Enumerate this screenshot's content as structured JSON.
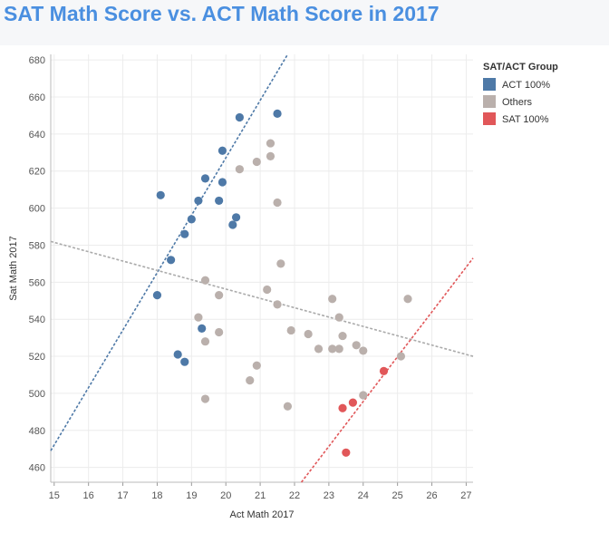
{
  "page": {
    "title": "SAT Math Score vs. ACT Math Score in 2017"
  },
  "chart_data": {
    "type": "scatter",
    "title": "SAT Math Score vs. ACT Math Score in 2017",
    "xlabel": "Act Math 2017",
    "ylabel": "Sat Math 2017",
    "xlim": [
      14.9,
      27.2
    ],
    "ylim": [
      452,
      683
    ],
    "x_ticks": [
      "15",
      "16",
      "17",
      "18",
      "19",
      "20",
      "21",
      "22",
      "23",
      "24",
      "25",
      "26",
      "27"
    ],
    "y_ticks": [
      "460",
      "480",
      "500",
      "520",
      "540",
      "560",
      "580",
      "600",
      "620",
      "640",
      "660",
      "680"
    ],
    "grid": true,
    "legend": {
      "title": "SAT/ACT Group",
      "position": "right"
    },
    "series": [
      {
        "name": "ACT 100%",
        "color": "#4e79a7",
        "points": [
          [
            18.0,
            553
          ],
          [
            18.1,
            607
          ],
          [
            18.4,
            572
          ],
          [
            18.6,
            521
          ],
          [
            18.8,
            517
          ],
          [
            18.8,
            586
          ],
          [
            19.0,
            594
          ],
          [
            19.2,
            604
          ],
          [
            19.3,
            535
          ],
          [
            19.4,
            616
          ],
          [
            19.8,
            604
          ],
          [
            19.9,
            631
          ],
          [
            19.9,
            614
          ],
          [
            20.2,
            591
          ],
          [
            20.3,
            595
          ],
          [
            20.4,
            649
          ],
          [
            21.5,
            651
          ]
        ]
      },
      {
        "name": "Others",
        "color": "#bab0ac",
        "points": [
          [
            19.2,
            541
          ],
          [
            19.4,
            561
          ],
          [
            19.4,
            528
          ],
          [
            19.4,
            497
          ],
          [
            19.8,
            553
          ],
          [
            19.8,
            533
          ],
          [
            20.4,
            621
          ],
          [
            20.7,
            507
          ],
          [
            20.9,
            625
          ],
          [
            20.9,
            515
          ],
          [
            21.2,
            556
          ],
          [
            21.3,
            635
          ],
          [
            21.3,
            628
          ],
          [
            21.5,
            603
          ],
          [
            21.5,
            548
          ],
          [
            21.6,
            570
          ],
          [
            21.8,
            493
          ],
          [
            21.9,
            534
          ],
          [
            22.4,
            532
          ],
          [
            22.7,
            524
          ],
          [
            23.1,
            551
          ],
          [
            23.1,
            524
          ],
          [
            23.3,
            541
          ],
          [
            23.3,
            524
          ],
          [
            23.4,
            531
          ],
          [
            23.8,
            526
          ],
          [
            24.0,
            523
          ],
          [
            24.0,
            499
          ],
          [
            25.1,
            520
          ],
          [
            25.3,
            551
          ]
        ]
      },
      {
        "name": "SAT 100%",
        "color": "#e15759",
        "points": [
          [
            23.4,
            492
          ],
          [
            23.5,
            468
          ],
          [
            23.7,
            495
          ],
          [
            24.6,
            512
          ]
        ]
      }
    ],
    "trend_lines": [
      {
        "series": "ACT 100%",
        "color": "#4e79a7",
        "from": [
          14.9,
          469
        ],
        "to": [
          21.8,
          683
        ]
      },
      {
        "series": "Others",
        "color": "#aaaaaa",
        "from": [
          14.9,
          582
        ],
        "to": [
          27.2,
          520
        ]
      },
      {
        "series": "SAT 100%",
        "color": "#e15759",
        "from": [
          22.2,
          452
        ],
        "to": [
          27.2,
          573
        ]
      }
    ]
  }
}
